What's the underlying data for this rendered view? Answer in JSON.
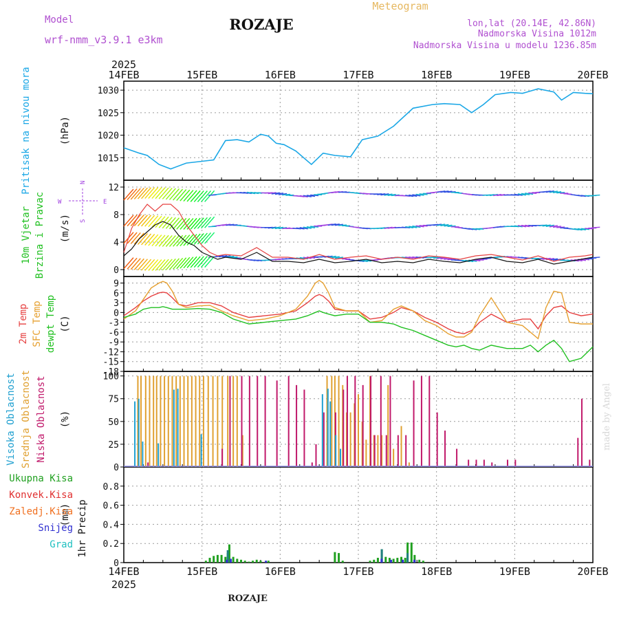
{
  "header": {
    "model_label": "Model",
    "model_name": "wrf-nmm_v3.9.1  e3km",
    "title": "ROZAJE",
    "meteogram": "Meteogram",
    "lonlat": "lon,lat (20.14E, 42.86N)",
    "elevation": "Nadmorska Visina 1012m",
    "model_elevation": "Nadmorska Visina u modelu 1236.85m",
    "year": "2025",
    "footer_title": "ROZAJE",
    "watermark": "made by Angel"
  },
  "time_axis": {
    "dates": [
      "14FEB",
      "15FEB",
      "16FEB",
      "17FEB",
      "18FEB",
      "19FEB",
      "20FEB"
    ]
  },
  "colors": {
    "pressure": "#1aa7e6",
    "temp2m": "#e64040",
    "sfc_temp": "#e6a030",
    "dewpt": "#20c020",
    "high_cloud": "#20a0d0",
    "mid_cloud": "#e0a030",
    "low_cloud": "#c0186a",
    "total_precip": "#20a020",
    "conv_precip": "#e03030",
    "frozen_precip": "#f07020",
    "snow": "#3030d0",
    "hail": "#20c0c0",
    "wind_purple": "#a040e0"
  },
  "chart_data": [
    {
      "type": "line",
      "panel": "pressure",
      "ylabel": "Pritisak na nivou mora",
      "unit": "(hPa)",
      "ylim": [
        1010,
        1032
      ],
      "yticks": [
        1015,
        1020,
        1025,
        1030
      ],
      "t": [
        0,
        0.2,
        0.3,
        0.45,
        0.6,
        0.8,
        1.0,
        1.15,
        1.3,
        1.45,
        1.6,
        1.75,
        1.85,
        1.95,
        2.05,
        2.2,
        2.4,
        2.55,
        2.7,
        2.9,
        3.05,
        3.25,
        3.45,
        3.7,
        3.95,
        4.1,
        4.3,
        4.45,
        4.6,
        4.75,
        4.95,
        5.1,
        5.3,
        5.5,
        5.6,
        5.75,
        5.9,
        6.0
      ],
      "values": [
        1017.2,
        1016,
        1015.5,
        1013.5,
        1012.5,
        1013.8,
        1014.2,
        1014.5,
        1018.8,
        1019.0,
        1018.5,
        1020.2,
        1019.8,
        1018.2,
        1017.9,
        1016.5,
        1013.5,
        1016.0,
        1015.5,
        1015.2,
        1019.0,
        1019.8,
        1022.0,
        1026.0,
        1026.8,
        1027.0,
        1026.8,
        1025.0,
        1026.8,
        1029.0,
        1029.5,
        1029.3,
        1030.3,
        1029.6,
        1027.8,
        1029.5,
        1029.3,
        1029.2
      ]
    },
    {
      "type": "line",
      "panel": "wind",
      "ylabel": "10m Vjetar Brzina i Pravac",
      "unit": "(m/s)",
      "ylim": [
        -1,
        13
      ],
      "yticks": [
        0,
        4,
        8,
        12
      ],
      "compass": [
        "N",
        "W",
        "E",
        "S"
      ],
      "t": [
        0,
        0.1,
        0.2,
        0.3,
        0.4,
        0.5,
        0.6,
        0.7,
        0.8,
        0.9,
        1.0,
        1.1,
        1.2,
        1.3,
        1.5,
        1.7,
        1.9,
        2.1,
        2.3,
        2.5,
        2.7,
        2.9,
        3.1,
        3.3,
        3.5,
        3.7,
        3.9,
        4.1,
        4.3,
        4.5,
        4.7,
        4.9,
        5.1,
        5.3,
        5.5,
        5.7,
        5.9,
        6.0
      ],
      "speed": [
        2.0,
        3.0,
        4.5,
        5.5,
        6.5,
        7.0,
        6.5,
        5.0,
        4.0,
        3.5,
        2.5,
        2.0,
        1.5,
        1.8,
        1.5,
        2.5,
        1.2,
        1.2,
        1.0,
        1.5,
        1.0,
        1.2,
        1.5,
        1.0,
        1.2,
        1.0,
        1.5,
        1.2,
        1.0,
        1.5,
        1.8,
        1.2,
        1.0,
        1.5,
        0.8,
        1.2,
        1.6,
        1.8
      ],
      "gust": [
        2.5,
        6,
        8,
        9.5,
        8.5,
        9.5,
        9.5,
        8.5,
        6.5,
        5.0,
        3.5,
        2.5,
        2.0,
        2.2,
        2.0,
        3.2,
        1.8,
        1.8,
        1.5,
        2.2,
        1.5,
        1.8,
        2.0,
        1.5,
        1.8,
        1.5,
        2.0,
        1.8,
        1.5,
        2.0,
        2.2,
        1.8,
        1.4,
        2.0,
        1.2,
        1.8,
        2.0,
        2.2
      ]
    },
    {
      "type": "line",
      "panel": "temperature",
      "ylabel": "2m Temp / SFC Temp / dewpt Temp",
      "series_names": [
        "2m Temp",
        "SFC Temp",
        "dewpt Temp"
      ],
      "unit": "(C)",
      "ylim": [
        -18,
        11
      ],
      "yticks": [
        9,
        6,
        3,
        0,
        -3,
        -6,
        -9,
        -12,
        -15,
        -18
      ],
      "t": [
        0,
        0.15,
        0.25,
        0.35,
        0.45,
        0.5,
        0.55,
        0.62,
        0.7,
        0.8,
        0.95,
        1.1,
        1.25,
        1.4,
        1.6,
        1.8,
        2.0,
        2.2,
        2.35,
        2.45,
        2.5,
        2.55,
        2.62,
        2.7,
        2.85,
        3.0,
        3.15,
        3.3,
        3.45,
        3.55,
        3.7,
        3.85,
        4.0,
        4.15,
        4.25,
        4.35,
        4.45,
        4.55,
        4.7,
        4.9,
        5.1,
        5.2,
        5.3,
        5.4,
        5.5,
        5.6,
        5.7,
        5.85,
        6.0
      ],
      "series": [
        {
          "name": "2m Temp",
          "values": [
            -1,
            1.5,
            3.5,
            5,
            6,
            6.2,
            6,
            4.5,
            2.5,
            2,
            3,
            3,
            2,
            0,
            -1.5,
            -1,
            -0.5,
            0.5,
            3,
            5,
            5.5,
            5,
            3.5,
            1,
            0.5,
            0.5,
            -2,
            -1.5,
            0,
            1.5,
            0.5,
            -1.5,
            -3,
            -5,
            -6,
            -6.5,
            -5.5,
            -3,
            -0.5,
            -3,
            -2,
            -2,
            -5,
            -1,
            1.5,
            2,
            0,
            -1,
            -0.5
          ]
        },
        {
          "name": "SFC Temp",
          "values": [
            -2,
            0.5,
            4,
            7.5,
            9,
            9.5,
            9,
            6.5,
            2.5,
            1.5,
            2,
            2.2,
            0.5,
            -1,
            -2.5,
            -2,
            -1,
            1,
            5,
            9,
            9.8,
            9,
            6,
            1.5,
            0.5,
            0.5,
            -3,
            -2.5,
            1,
            2,
            0.5,
            -2.5,
            -4,
            -6.5,
            -7.5,
            -7.5,
            -6,
            -1,
            4.5,
            -3,
            -4,
            -6,
            -8,
            1.5,
            6.5,
            6,
            -3,
            -3.5,
            -3.5
          ]
        },
        {
          "name": "dewpt Temp",
          "values": [
            -1.5,
            -0.5,
            1,
            1.5,
            1.5,
            1.8,
            1.5,
            1,
            1,
            1,
            1.2,
            1,
            0,
            -2,
            -3.5,
            -3,
            -2.5,
            -2,
            -1,
            0,
            0.5,
            0,
            -0.5,
            -1,
            -0.5,
            -0.5,
            -3,
            -3,
            -3.5,
            -4.5,
            -5.5,
            -7,
            -8.5,
            -10,
            -10.5,
            -10,
            -11,
            -11.5,
            -10,
            -11,
            -11,
            -10,
            -12,
            -10,
            -8.5,
            -11,
            -15,
            -14,
            -10.5
          ]
        }
      ]
    },
    {
      "type": "bar",
      "panel": "cloud",
      "ylabel": "Visoka Oblacnost / Srednja Oblacnost / Niska Oblacnost",
      "series_names": [
        "Visoka Oblacnost",
        "Srednja Oblacnost",
        "Niska Oblacnost"
      ],
      "unit": "(%)",
      "ylim": [
        0,
        105
      ],
      "yticks": [
        0,
        25,
        50,
        75,
        100
      ],
      "high": [
        [
          0.15,
          72
        ],
        [
          0.2,
          75
        ],
        [
          0.25,
          28
        ],
        [
          0.45,
          26
        ],
        [
          0.65,
          85
        ],
        [
          0.7,
          86
        ],
        [
          1.0,
          36
        ],
        [
          2.55,
          80
        ],
        [
          2.62,
          86
        ],
        [
          2.65,
          72
        ],
        [
          2.72,
          35
        ],
        [
          2.78,
          20
        ]
      ],
      "mid": [
        [
          0.18,
          100
        ],
        [
          0.22,
          100
        ],
        [
          0.28,
          100
        ],
        [
          0.33,
          100
        ],
        [
          0.38,
          100
        ],
        [
          0.42,
          100
        ],
        [
          0.47,
          100
        ],
        [
          0.52,
          100
        ],
        [
          0.57,
          100
        ],
        [
          0.62,
          100
        ],
        [
          0.67,
          100
        ],
        [
          0.72,
          100
        ],
        [
          0.77,
          100
        ],
        [
          0.82,
          100
        ],
        [
          0.87,
          100
        ],
        [
          0.92,
          100
        ],
        [
          0.97,
          100
        ],
        [
          1.02,
          100
        ],
        [
          1.08,
          100
        ],
        [
          1.14,
          100
        ],
        [
          1.2,
          100
        ],
        [
          1.26,
          100
        ],
        [
          1.33,
          100
        ],
        [
          1.4,
          100
        ],
        [
          1.45,
          100
        ],
        [
          1.52,
          35
        ],
        [
          2.6,
          100
        ],
        [
          2.66,
          100
        ],
        [
          2.7,
          100
        ],
        [
          2.75,
          100
        ],
        [
          2.8,
          90
        ],
        [
          2.85,
          60
        ],
        [
          2.9,
          60
        ],
        [
          2.95,
          70
        ],
        [
          3.0,
          80
        ],
        [
          3.05,
          50
        ],
        [
          3.1,
          30
        ],
        [
          3.15,
          100
        ],
        [
          3.2,
          35
        ],
        [
          3.25,
          35
        ],
        [
          3.3,
          35
        ],
        [
          3.38,
          90
        ],
        [
          3.45,
          20
        ],
        [
          3.55,
          45
        ],
        [
          3.65,
          5
        ]
      ],
      "low": [
        [
          0.3,
          5
        ],
        [
          1.25,
          20
        ],
        [
          1.35,
          100
        ],
        [
          1.5,
          100
        ],
        [
          1.6,
          100
        ],
        [
          1.7,
          100
        ],
        [
          1.8,
          100
        ],
        [
          1.95,
          95
        ],
        [
          2.1,
          100
        ],
        [
          2.2,
          90
        ],
        [
          2.3,
          85
        ],
        [
          2.4,
          5
        ],
        [
          2.45,
          25
        ],
        [
          2.55,
          60
        ],
        [
          2.7,
          60
        ],
        [
          2.8,
          85
        ],
        [
          2.85,
          100
        ],
        [
          2.95,
          100
        ],
        [
          3.05,
          90
        ],
        [
          3.15,
          100
        ],
        [
          3.2,
          35
        ],
        [
          3.28,
          100
        ],
        [
          3.35,
          35
        ],
        [
          3.4,
          100
        ],
        [
          3.5,
          35
        ],
        [
          3.6,
          35
        ],
        [
          3.7,
          95
        ],
        [
          3.8,
          100
        ],
        [
          3.9,
          100
        ],
        [
          4.0,
          60
        ],
        [
          4.1,
          40
        ],
        [
          4.25,
          20
        ],
        [
          4.4,
          8
        ],
        [
          4.5,
          8
        ],
        [
          4.6,
          8
        ],
        [
          4.7,
          5
        ],
        [
          4.9,
          8
        ],
        [
          5.0,
          8
        ],
        [
          5.8,
          32
        ],
        [
          5.85,
          75
        ],
        [
          5.95,
          8
        ]
      ]
    },
    {
      "type": "bar",
      "panel": "precip",
      "ylabel": "1hr Precip",
      "unit": "(mm)",
      "legend": [
        "Ukupna Kisa",
        "Konvek.Kisa",
        "Zaledj.Kisa",
        "Snijeg",
        "Grad"
      ],
      "ylim": [
        0,
        1.0
      ],
      "yticks": [
        0,
        0.2,
        0.4,
        0.6,
        0.8
      ],
      "total": [
        [
          1.05,
          0.02
        ],
        [
          1.1,
          0.05
        ],
        [
          1.15,
          0.07
        ],
        [
          1.2,
          0.08
        ],
        [
          1.25,
          0.08
        ],
        [
          1.3,
          0.06
        ],
        [
          1.33,
          0.1
        ],
        [
          1.35,
          0.19
        ],
        [
          1.4,
          0.06
        ],
        [
          1.45,
          0.04
        ],
        [
          1.5,
          0.03
        ],
        [
          1.55,
          0.02
        ],
        [
          1.6,
          0.01
        ],
        [
          1.65,
          0.02
        ],
        [
          1.7,
          0.03
        ],
        [
          1.75,
          0.02
        ],
        [
          1.85,
          0.02
        ],
        [
          2.7,
          0.11
        ],
        [
          2.75,
          0.1
        ],
        [
          2.8,
          0.02
        ],
        [
          3.15,
          0.02
        ],
        [
          3.2,
          0.03
        ],
        [
          3.25,
          0.05
        ],
        [
          3.3,
          0.14
        ],
        [
          3.35,
          0.06
        ],
        [
          3.4,
          0.05
        ],
        [
          3.45,
          0.04
        ],
        [
          3.5,
          0.05
        ],
        [
          3.55,
          0.06
        ],
        [
          3.6,
          0.05
        ],
        [
          3.63,
          0.21
        ],
        [
          3.68,
          0.21
        ],
        [
          3.72,
          0.08
        ],
        [
          3.78,
          0.03
        ],
        [
          3.83,
          0.02
        ]
      ],
      "snow": [
        [
          1.3,
          0.03
        ],
        [
          1.35,
          0.04
        ],
        [
          1.8,
          0.02
        ],
        [
          3.28,
          0.04
        ],
        [
          3.4,
          0.03
        ],
        [
          3.55,
          0.03
        ],
        [
          3.7,
          0.03
        ]
      ],
      "hail": [
        [
          1.33,
          0.13
        ],
        [
          3.3,
          0.14
        ],
        [
          3.63,
          0.1
        ]
      ]
    }
  ]
}
